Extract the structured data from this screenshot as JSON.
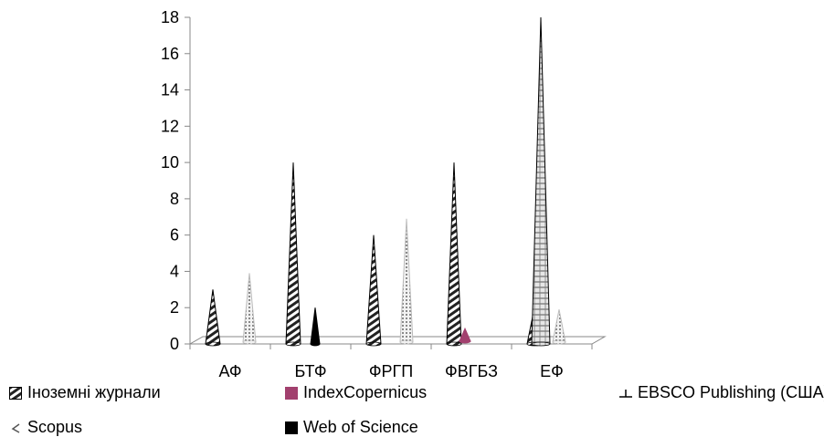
{
  "chart_data": {
    "type": "bar",
    "style": "3d-cone",
    "categories": [
      "АФ",
      "БТФ",
      "ФРГП",
      "ФВГБЗ",
      "ЕФ"
    ],
    "series": [
      {
        "name": "Іноземні журнали",
        "values": [
          3,
          10,
          6,
          10,
          2
        ],
        "color": "#222222"
      },
      {
        "name": "IndexCopernicus",
        "values": [
          0,
          0,
          0,
          1,
          0
        ],
        "color": "#a2406e"
      },
      {
        "name": "EBSCO Publishing (США)",
        "values": [
          0,
          0,
          0,
          0,
          18
        ],
        "color": "#555555"
      },
      {
        "name": "Scopus",
        "values": [
          4,
          0,
          7,
          0,
          2
        ],
        "color": "#9a9a9a"
      },
      {
        "name": "Web of Science",
        "values": [
          0,
          2,
          0,
          0,
          0
        ],
        "color": "#000000"
      }
    ],
    "ylim": [
      0,
      18
    ],
    "yticks": [
      "0",
      "2",
      "4",
      "6",
      "8",
      "10",
      "12",
      "14",
      "16",
      "18"
    ],
    "grid": false,
    "legend_position": "bottom"
  }
}
